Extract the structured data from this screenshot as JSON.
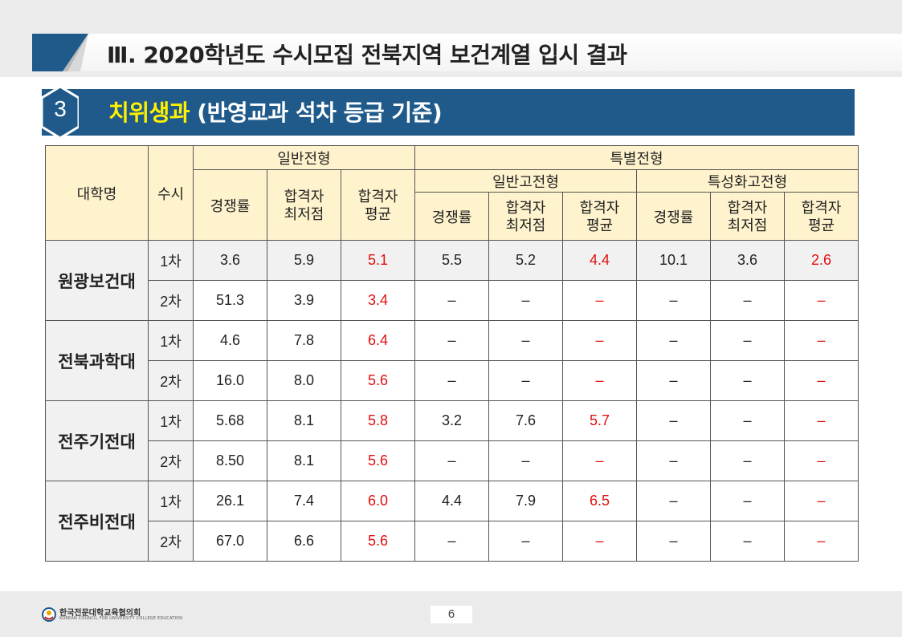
{
  "header": {
    "title": "Ⅲ. 2020학년도 수시모집 전북지역 보건계열 입시 결과"
  },
  "section": {
    "number": "3",
    "title_highlight": "치위생과",
    "title_rest": " (반영교과  석차 등급 기준)"
  },
  "table": {
    "headers": {
      "univ": "대학명",
      "round": "수시",
      "general": "일반전형",
      "special": "특별전형",
      "special_general": "일반고전형",
      "special_specialized": "특성화고전형",
      "competition": "경쟁률",
      "min_line1": "합격자",
      "min_line2": "최저점",
      "avg_line1": "합격자",
      "avg_line2": "평균"
    },
    "universities": [
      {
        "name": "원광보건대",
        "rounds": [
          {
            "round": "1차",
            "values": [
              "3.6",
              "5.9",
              "5.1",
              "5.5",
              "5.2",
              "4.4",
              "10.1",
              "3.6",
              "2.6"
            ]
          },
          {
            "round": "2차",
            "values": [
              "51.3",
              "3.9",
              "3.4",
              "–",
              "–",
              "–",
              "–",
              "–",
              "–"
            ]
          }
        ]
      },
      {
        "name": "전북과학대",
        "rounds": [
          {
            "round": "1차",
            "values": [
              "4.6",
              "7.8",
              "6.4",
              "–",
              "–",
              "–",
              "–",
              "–",
              "–"
            ]
          },
          {
            "round": "2차",
            "values": [
              "16.0",
              "8.0",
              "5.6",
              "–",
              "–",
              "–",
              "–",
              "–",
              "–"
            ]
          }
        ]
      },
      {
        "name": "전주기전대",
        "rounds": [
          {
            "round": "1차",
            "values": [
              "5.68",
              "8.1",
              "5.8",
              "3.2",
              "7.6",
              "5.7",
              "–",
              "–",
              "–"
            ]
          },
          {
            "round": "2차",
            "values": [
              "8.50",
              "8.1",
              "5.6",
              "–",
              "–",
              "–",
              "–",
              "–",
              "–"
            ]
          }
        ]
      },
      {
        "name": "전주비전대",
        "rounds": [
          {
            "round": "1차",
            "values": [
              "26.1",
              "7.4",
              "6.0",
              "4.4",
              "7.9",
              "6.5",
              "–",
              "–",
              "–"
            ]
          },
          {
            "round": "2차",
            "values": [
              "67.0",
              "6.6",
              "5.6",
              "–",
              "–",
              "–",
              "–",
              "–",
              "–"
            ]
          }
        ]
      }
    ]
  },
  "footer": {
    "org_name_ko": "한국전문대학교육협의회",
    "org_name_en": "KOREAN COUNCIL FOR UNIVERSITY COLLEGE EDUCATION",
    "page_number": "6"
  },
  "colors": {
    "section_bar": "#1f5a8a",
    "highlight_text": "#fff200",
    "avg_value": "#e01010",
    "header_fill": "#fff3cd"
  }
}
